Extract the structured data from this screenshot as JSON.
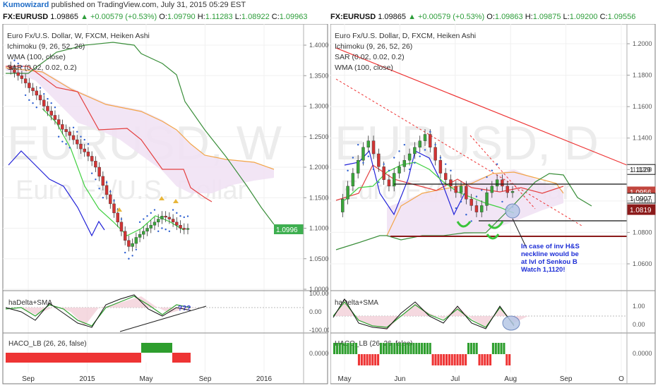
{
  "header": {
    "author": "Kumowizard",
    "published_text": "published on TradingView.com, July 31, 2015 05:29 EST"
  },
  "quote_left": {
    "symbol": "FX:EURUSD",
    "price": "1.09865",
    "change": "▲ +0.00579 (+0.53%)",
    "o_label": "O:",
    "o": "1.09790",
    "h_label": "H:",
    "h": "1.11283",
    "l_label": "L:",
    "l": "1.08922",
    "c_label": "C:",
    "c": "1.09963"
  },
  "quote_right": {
    "symbol": "FX:EURUSD",
    "price": "1.09865",
    "change": "▲ +0.00579 (+0.53%)",
    "o_label": "O:",
    "o": "1.09863",
    "h_label": "H:",
    "h": "1.09875",
    "l_label": "L:",
    "l": "1.09200",
    "c_label": "C:",
    "c": "1.09556"
  },
  "left_chart": {
    "legend": [
      "Euro Fx/U.S. Dollar, W, FXCM, Heiken Ashi",
      "Ichimoku (9, 26, 52, 26)",
      "WMA (100, close)",
      "SAR (0.02, 0.02, 0.2)"
    ],
    "watermark_symbol": "EURUSD, W",
    "watermark_name": "Euro Fx/U.S. Dollar",
    "price_badge": "1.0996",
    "annotation": "???",
    "osc_label": "haDelta+SMA",
    "haco_label": "HACO_LB (26, 26, false)"
  },
  "right_chart": {
    "legend": [
      "Euro Fx/U.S. Dollar, D, FXCM, Heiken Ashi",
      "Ichimoku (9, 26, 52, 26)",
      "SAR (0.02, 0.02, 0.2)",
      "WMA (100, close)"
    ],
    "watermark_symbol": "EURUSD, D",
    "watermark_name": "Euro Fx/U.S. Dollar",
    "badges": [
      "1.1129",
      "1.0956",
      "1.0907",
      "1.0819"
    ],
    "annotation": [
      "In case of inv H&S",
      "neckline would be",
      "at lvl of Senkou B",
      "Watch 1,1120!"
    ],
    "osc_label": "haDelta+SMA",
    "haco_label": "HACO_LB (26, 26, false)"
  },
  "chart_data": [
    {
      "type": "candlestick",
      "timeframe": "W",
      "y_ticks": [
        "1.4000",
        "1.3500",
        "1.3000",
        "1.2500",
        "1.2000",
        "1.1500",
        "1.1000",
        "1.0500",
        "1.0000"
      ],
      "ylim": [
        1.0,
        1.41
      ],
      "x_ticks": [
        "Sep",
        "2015",
        "May",
        "Sep",
        "2016"
      ],
      "osc_ticks": [
        "100.00",
        "0.00",
        "-100.00"
      ],
      "haco_ticks": [
        "0.0000"
      ],
      "last_price": 1.0996,
      "close_series": [
        1.365,
        1.36,
        1.355,
        1.35,
        1.345,
        1.338,
        1.33,
        1.325,
        1.318,
        1.31,
        1.3,
        1.292,
        1.285,
        1.278,
        1.27,
        1.262,
        1.258,
        1.252,
        1.245,
        1.238,
        1.23,
        1.225,
        1.218,
        1.21,
        1.2,
        1.185,
        1.17,
        1.155,
        1.14,
        1.125,
        1.11,
        1.095,
        1.08,
        1.07,
        1.075,
        1.085,
        1.09,
        1.095,
        1.1,
        1.105,
        1.11,
        1.115,
        1.12,
        1.118,
        1.115,
        1.11,
        1.105,
        1.1,
        1.098,
        1.0996
      ]
    },
    {
      "type": "candlestick",
      "timeframe": "D",
      "y_ticks": [
        "1.2000",
        "1.1800",
        "1.1600",
        "1.1400",
        "1.1200",
        "1.1000",
        "1.0800",
        "1.0600"
      ],
      "ylim": [
        1.04,
        1.215
      ],
      "x_ticks": [
        "May",
        "Jun",
        "Jul",
        "Aug",
        "Sep",
        "O"
      ],
      "osc_ticks": [
        "1.00",
        "0.00"
      ],
      "haco_ticks": [
        "0.0000"
      ],
      "levels": [
        1.1129,
        1.0956,
        1.0907,
        1.0819
      ],
      "close_series": [
        1.08,
        1.09,
        1.1,
        1.11,
        1.12,
        1.13,
        1.135,
        1.125,
        1.115,
        1.105,
        1.1,
        1.11,
        1.115,
        1.12,
        1.125,
        1.13,
        1.135,
        1.14,
        1.13,
        1.12,
        1.11,
        1.105,
        1.1,
        1.095,
        1.1,
        1.09,
        1.085,
        1.08,
        1.085,
        1.095,
        1.1,
        1.105,
        1.1,
        1.095,
        1.096
      ]
    }
  ]
}
